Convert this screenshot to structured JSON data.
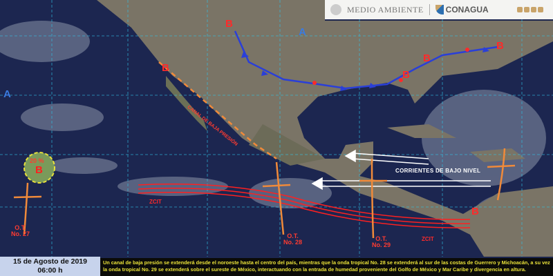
{
  "header": {
    "agency1": "MEDIO AMBIENTE",
    "agency2": "CONAGUA",
    "social_icons": [
      "facebook-icon",
      "twitter-icon",
      "instagram-icon",
      "youtube-icon"
    ]
  },
  "date": {
    "line1": "15 de Agosto de 2019",
    "line2": "06:00 h"
  },
  "description": "Un canal de baja presión se extenderá desde el noroeste hasta el centro del país, mientras que la onda tropical No. 28 se extenderá al sur de las costas de Guerrero y Michoacán, a su vez la onda tropical No. 29 se extenderá sobre el sureste de México, interactuando  con la entrada de humedad proveniente  del Golfo de México y Mar Caribe  y divergencia en altura.",
  "labels": {
    "low": "B",
    "high": "A",
    "probability": "20 %",
    "ot27": "O.T.\nNo. 27",
    "ot28": "O.T.\nNo. 28",
    "ot29": "O.T.\nNo. 29",
    "zcit": "ZCIT",
    "trough": "CANAL DE BAJA PRESIÓN",
    "low_level_currents": "CORRIENTES  DE BAJO NIVEL"
  },
  "colors": {
    "ocean": "#1c2650",
    "land": "#7a7466",
    "front": "#2a3fd8",
    "itcz": "#ff2020",
    "wave": "#f08a3a",
    "date_bg": "#c7d3ec",
    "text_bg": "#0b0b08",
    "text_fg": "#e9e13a"
  }
}
